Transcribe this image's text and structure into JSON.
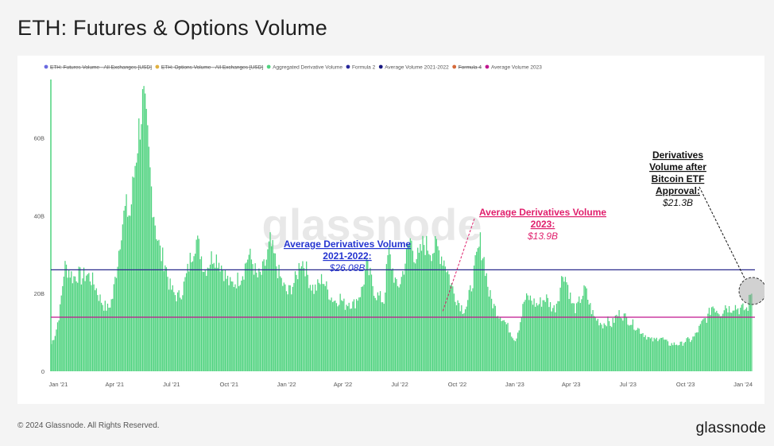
{
  "title": "ETH: Futures & Options Volume",
  "footer": "© 2024 Glassnode. All Rights Reserved.",
  "brand": "glassnode",
  "watermark": "glassnode",
  "colors": {
    "bars": "#4fd37f",
    "avg_2021_2022": "#2a2a8c",
    "avg_2023": "#c0168f",
    "annotation_2021_2022": "#2434d0",
    "annotation_2023": "#e0206d"
  },
  "legend": [
    {
      "label": "ETH: Futures Volume - All Exchanges [USD]",
      "color": "#6a6ae0",
      "struck": true
    },
    {
      "label": "ETH: Options Volume - All Exchanges [USD]",
      "color": "#e0b040",
      "struck": true
    },
    {
      "label": "Aggregated Derivative Volume",
      "color": "#4fd37f",
      "struck": false
    },
    {
      "label": "Formula 2",
      "color": "#27279a",
      "struck": false
    },
    {
      "label": "Average Volume 2021-2022",
      "color": "#181880",
      "struck": false
    },
    {
      "label": "Formula 4",
      "color": "#d66a3a",
      "struck": true
    },
    {
      "label": "Average Volume 2023",
      "color": "#c0168f",
      "struck": false
    }
  ],
  "annotations": {
    "avg_2021_2022_title_1": "Average Derivatives Volume",
    "avg_2021_2022_title_2": "2021-2022:",
    "avg_2021_2022_value": "$26.08B",
    "avg_2023_title_1": "Average Derivatives Volume",
    "avg_2023_title_2": "2023:",
    "avg_2023_value": "$13.9B",
    "etf_line_1": "Derivatives",
    "etf_line_2": "Volume after",
    "etf_line_3": "Bitcoin ETF",
    "etf_line_4": "Approval:",
    "etf_value": "$21.3B"
  },
  "chart_data": {
    "type": "bar",
    "ylim": [
      0,
      75
    ],
    "y_ticks": [
      {
        "value": 0,
        "label": "0"
      },
      {
        "value": 20,
        "label": "20B"
      },
      {
        "value": 40,
        "label": "40B"
      },
      {
        "value": 60,
        "label": "60B"
      }
    ],
    "x_ticks": [
      {
        "date": "2021-01-01",
        "label": "Jan '21"
      },
      {
        "date": "2021-04-01",
        "label": "Apr '21"
      },
      {
        "date": "2021-07-01",
        "label": "Jul '21"
      },
      {
        "date": "2021-10-01",
        "label": "Oct '21"
      },
      {
        "date": "2022-01-01",
        "label": "Jan '22"
      },
      {
        "date": "2022-04-01",
        "label": "Apr '22"
      },
      {
        "date": "2022-07-01",
        "label": "Jul '22"
      },
      {
        "date": "2022-10-01",
        "label": "Oct '22"
      },
      {
        "date": "2023-01-01",
        "label": "Jan '23"
      },
      {
        "date": "2023-04-01",
        "label": "Apr '23"
      },
      {
        "date": "2023-07-01",
        "label": "Jul '23"
      },
      {
        "date": "2023-10-01",
        "label": "Oct '23"
      },
      {
        "date": "2024-01-01",
        "label": "Jan '24"
      }
    ],
    "x_range": [
      "2020-12-20",
      "2024-01-20"
    ],
    "reference_lines": [
      {
        "name": "Average Volume 2021-2022",
        "value": 26.08
      },
      {
        "name": "Average Volume 2023",
        "value": 13.9
      }
    ],
    "series": [
      {
        "name": "Aggregated Derivative Volume",
        "points": [
          [
            "2020-12-20",
            7
          ],
          [
            "2020-12-27",
            10
          ],
          [
            "2021-01-03",
            16
          ],
          [
            "2021-01-10",
            27
          ],
          [
            "2021-01-17",
            26
          ],
          [
            "2021-01-24",
            24
          ],
          [
            "2021-01-31",
            25
          ],
          [
            "2021-02-07",
            24
          ],
          [
            "2021-02-14",
            25
          ],
          [
            "2021-02-21",
            24
          ],
          [
            "2021-02-28",
            22
          ],
          [
            "2021-03-07",
            19
          ],
          [
            "2021-03-14",
            17
          ],
          [
            "2021-03-21",
            16
          ],
          [
            "2021-03-28",
            19
          ],
          [
            "2021-04-04",
            27
          ],
          [
            "2021-04-11",
            37
          ],
          [
            "2021-04-18",
            42
          ],
          [
            "2021-04-25",
            40
          ],
          [
            "2021-05-02",
            52
          ],
          [
            "2021-05-09",
            62
          ],
          [
            "2021-05-16",
            70
          ],
          [
            "2021-05-23",
            59
          ],
          [
            "2021-05-30",
            45
          ],
          [
            "2021-06-06",
            36
          ],
          [
            "2021-06-13",
            30
          ],
          [
            "2021-06-20",
            28
          ],
          [
            "2021-06-27",
            22
          ],
          [
            "2021-07-04",
            20
          ],
          [
            "2021-07-11",
            19
          ],
          [
            "2021-07-18",
            21
          ],
          [
            "2021-07-25",
            25
          ],
          [
            "2021-08-01",
            30
          ],
          [
            "2021-08-08",
            34
          ],
          [
            "2021-08-15",
            31
          ],
          [
            "2021-08-22",
            26
          ],
          [
            "2021-08-29",
            28
          ],
          [
            "2021-09-05",
            30
          ],
          [
            "2021-09-12",
            29
          ],
          [
            "2021-09-19",
            27
          ],
          [
            "2021-09-26",
            24
          ],
          [
            "2021-10-03",
            22
          ],
          [
            "2021-10-10",
            23
          ],
          [
            "2021-10-17",
            24
          ],
          [
            "2021-10-24",
            26
          ],
          [
            "2021-10-31",
            30
          ],
          [
            "2021-11-07",
            28
          ],
          [
            "2021-11-14",
            24
          ],
          [
            "2021-11-21",
            25
          ],
          [
            "2021-11-28",
            28
          ],
          [
            "2021-12-05",
            33
          ],
          [
            "2021-12-12",
            29
          ],
          [
            "2021-12-19",
            25
          ],
          [
            "2021-12-26",
            22
          ],
          [
            "2022-01-02",
            20
          ],
          [
            "2022-01-09",
            22
          ],
          [
            "2022-01-16",
            24
          ],
          [
            "2022-01-23",
            29
          ],
          [
            "2022-01-30",
            27
          ],
          [
            "2022-02-06",
            23
          ],
          [
            "2022-02-13",
            21
          ],
          [
            "2022-02-20",
            22
          ],
          [
            "2022-02-27",
            24
          ],
          [
            "2022-03-06",
            21
          ],
          [
            "2022-03-13",
            19
          ],
          [
            "2022-03-20",
            18
          ],
          [
            "2022-03-27",
            19
          ],
          [
            "2022-04-03",
            17
          ],
          [
            "2022-04-10",
            18
          ],
          [
            "2022-04-17",
            17
          ],
          [
            "2022-04-24",
            19
          ],
          [
            "2022-05-01",
            21
          ],
          [
            "2022-05-08",
            27
          ],
          [
            "2022-05-15",
            24
          ],
          [
            "2022-05-22",
            20
          ],
          [
            "2022-05-29",
            19
          ],
          [
            "2022-06-05",
            18
          ],
          [
            "2022-06-12",
            31
          ],
          [
            "2022-06-19",
            26
          ],
          [
            "2022-06-26",
            21
          ],
          [
            "2022-07-03",
            24
          ],
          [
            "2022-07-10",
            29
          ],
          [
            "2022-07-17",
            34
          ],
          [
            "2022-07-24",
            30
          ],
          [
            "2022-07-31",
            29
          ],
          [
            "2022-08-07",
            33
          ],
          [
            "2022-08-14",
            32
          ],
          [
            "2022-08-21",
            31
          ],
          [
            "2022-08-28",
            32
          ],
          [
            "2022-09-04",
            30
          ],
          [
            "2022-09-11",
            28
          ],
          [
            "2022-09-18",
            24
          ],
          [
            "2022-09-25",
            20
          ],
          [
            "2022-10-02",
            18
          ],
          [
            "2022-10-09",
            16
          ],
          [
            "2022-10-16",
            17
          ],
          [
            "2022-10-23",
            22
          ],
          [
            "2022-10-30",
            28
          ],
          [
            "2022-11-06",
            33
          ],
          [
            "2022-11-13",
            28
          ],
          [
            "2022-11-20",
            20
          ],
          [
            "2022-11-27",
            17
          ],
          [
            "2022-12-04",
            15
          ],
          [
            "2022-12-11",
            14
          ],
          [
            "2022-12-18",
            12
          ],
          [
            "2022-12-25",
            10
          ],
          [
            "2023-01-01",
            8
          ],
          [
            "2023-01-08",
            12
          ],
          [
            "2023-01-15",
            18
          ],
          [
            "2023-01-22",
            19
          ],
          [
            "2023-01-29",
            18
          ],
          [
            "2023-02-05",
            17
          ],
          [
            "2023-02-12",
            18
          ],
          [
            "2023-02-19",
            19
          ],
          [
            "2023-02-26",
            17
          ],
          [
            "2023-03-05",
            16
          ],
          [
            "2023-03-12",
            20
          ],
          [
            "2023-03-19",
            26
          ],
          [
            "2023-03-26",
            22
          ],
          [
            "2023-04-02",
            17
          ],
          [
            "2023-04-09",
            16
          ],
          [
            "2023-04-16",
            19
          ],
          [
            "2023-04-23",
            21
          ],
          [
            "2023-04-30",
            17
          ],
          [
            "2023-05-07",
            14
          ],
          [
            "2023-05-14",
            13
          ],
          [
            "2023-05-21",
            12
          ],
          [
            "2023-05-28",
            13
          ],
          [
            "2023-06-04",
            12
          ],
          [
            "2023-06-11",
            14
          ],
          [
            "2023-06-18",
            15
          ],
          [
            "2023-06-25",
            14
          ],
          [
            "2023-07-02",
            13
          ],
          [
            "2023-07-09",
            12
          ],
          [
            "2023-07-16",
            11
          ],
          [
            "2023-07-23",
            10
          ],
          [
            "2023-07-30",
            9
          ],
          [
            "2023-08-06",
            8
          ],
          [
            "2023-08-13",
            8
          ],
          [
            "2023-08-20",
            9
          ],
          [
            "2023-08-27",
            8
          ],
          [
            "2023-09-03",
            7
          ],
          [
            "2023-09-10",
            7
          ],
          [
            "2023-09-17",
            7
          ],
          [
            "2023-09-24",
            7
          ],
          [
            "2023-10-01",
            8
          ],
          [
            "2023-10-08",
            8
          ],
          [
            "2023-10-15",
            9
          ],
          [
            "2023-10-22",
            11
          ],
          [
            "2023-10-29",
            13
          ],
          [
            "2023-11-05",
            14
          ],
          [
            "2023-11-12",
            17
          ],
          [
            "2023-11-19",
            16
          ],
          [
            "2023-11-26",
            15
          ],
          [
            "2023-12-03",
            17
          ],
          [
            "2023-12-10",
            16
          ],
          [
            "2023-12-17",
            17
          ],
          [
            "2023-12-24",
            16
          ],
          [
            "2023-12-31",
            16
          ],
          [
            "2024-01-07",
            16
          ],
          [
            "2024-01-14",
            21
          ]
        ]
      }
    ]
  }
}
